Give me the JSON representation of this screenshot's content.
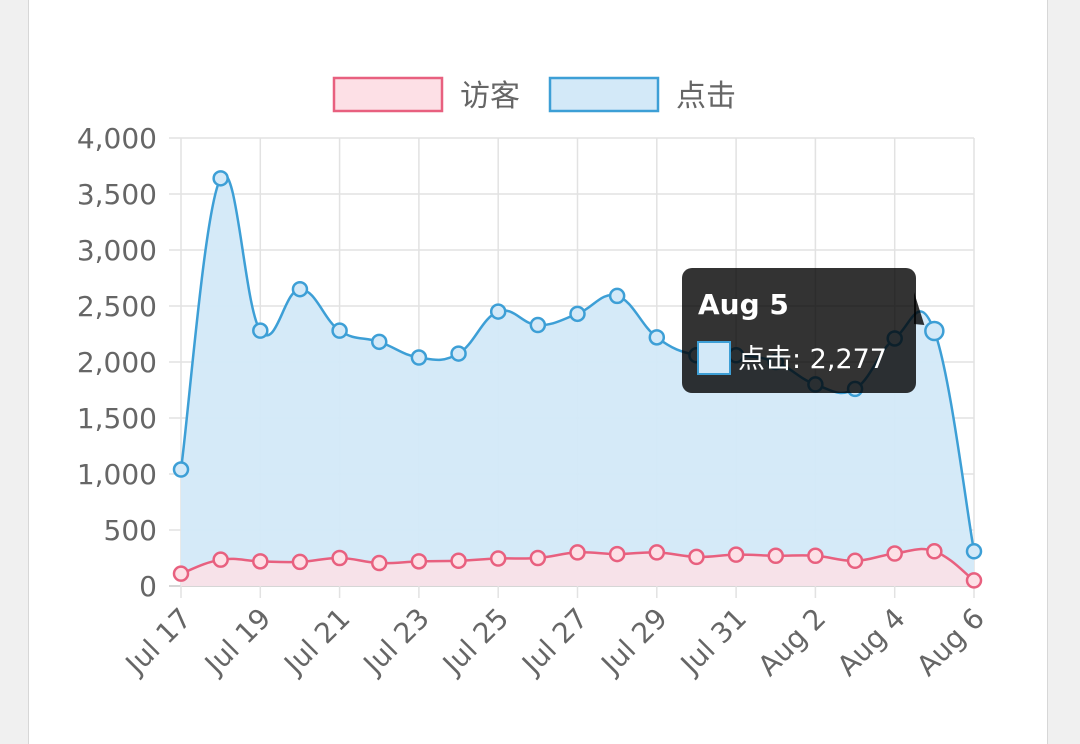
{
  "chart_data": {
    "type": "line",
    "categories": [
      "Jul 17",
      "Jul 18",
      "Jul 19",
      "Jul 20",
      "Jul 21",
      "Jul 22",
      "Jul 23",
      "Jul 24",
      "Jul 25",
      "Jul 26",
      "Jul 27",
      "Jul 28",
      "Jul 29",
      "Jul 30",
      "Jul 31",
      "Aug 1",
      "Aug 2",
      "Aug 3",
      "Aug 4",
      "Aug 5",
      "Aug 6"
    ],
    "x_tick_labels": [
      "Jul 17",
      "Jul 19",
      "Jul 21",
      "Jul 23",
      "Jul 25",
      "Jul 27",
      "Jul 29",
      "Jul 31",
      "Aug 2",
      "Aug 4",
      "Aug 6"
    ],
    "series": [
      {
        "name": "访客",
        "values": [
          110,
          235,
          220,
          215,
          250,
          205,
          220,
          225,
          245,
          250,
          300,
          285,
          300,
          260,
          280,
          270,
          270,
          225,
          290,
          310,
          50
        ],
        "border_color": "#e8607f",
        "fill_color": "#fde0e6"
      },
      {
        "name": "点击",
        "values": [
          1040,
          3640,
          2280,
          2650,
          2280,
          2180,
          2040,
          2075,
          2450,
          2330,
          2430,
          2590,
          2220,
          2060,
          2060,
          2000,
          1800,
          1760,
          2210,
          2277,
          310
        ],
        "border_color": "#3d9fd6",
        "fill_color": "#d3e9f8"
      }
    ],
    "ylim": [
      0,
      4000
    ],
    "y_ticks": [
      0,
      500,
      1000,
      1500,
      2000,
      2500,
      3000,
      3500,
      4000
    ],
    "y_tick_labels": [
      "0",
      "500",
      "1,000",
      "1,500",
      "2,000",
      "2,500",
      "3,000",
      "3,500",
      "4,000"
    ],
    "grid": true,
    "legend_position": "top",
    "tooltip": {
      "title": "Aug 5",
      "series_label": "点击",
      "value_label": "2,277",
      "text": "点击: 2,277"
    }
  }
}
